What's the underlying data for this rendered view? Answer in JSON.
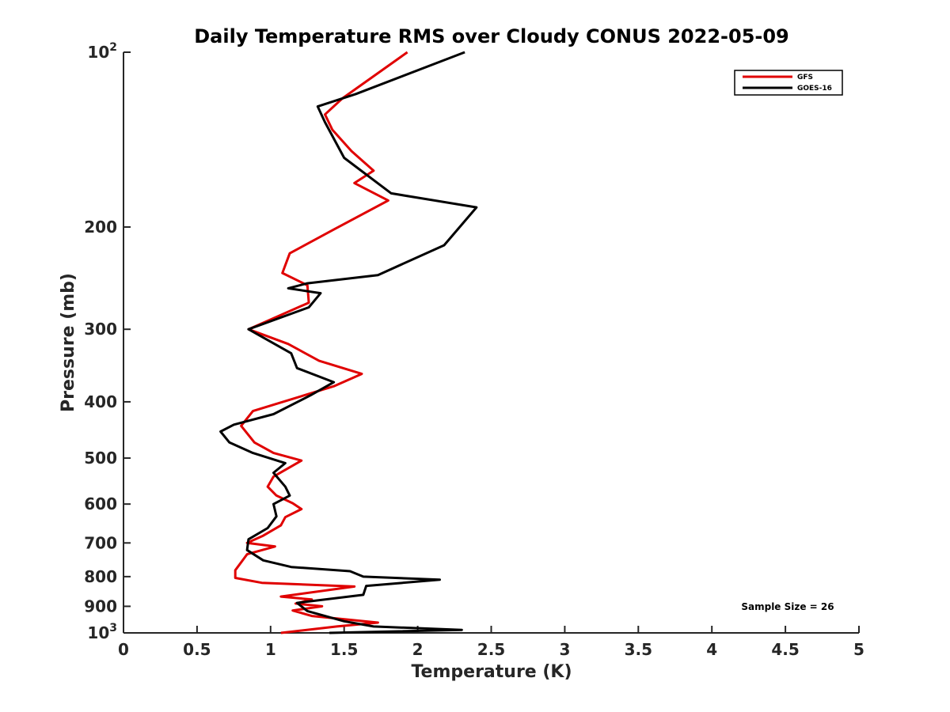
{
  "chart_data": {
    "type": "line",
    "title": "Daily Temperature RMS over Cloudy CONUS 2022-05-09",
    "xlabel": "Temperature (K)",
    "ylabel": "Pressure (mb)",
    "xlim": [
      0,
      5
    ],
    "ylim": [
      100,
      1000
    ],
    "y_scale": "log",
    "y_reversed": true,
    "x_ticks": [
      "0",
      "0.5",
      "1",
      "1.5",
      "2",
      "2.5",
      "3",
      "3.5",
      "4",
      "4.5",
      "5"
    ],
    "x_tick_values": [
      0,
      0.5,
      1,
      1.5,
      2,
      2.5,
      3,
      3.5,
      4,
      4.5,
      5
    ],
    "y_tick_values": [
      100,
      200,
      300,
      400,
      500,
      600,
      700,
      800,
      900,
      1000
    ],
    "y_tick_labels": [
      {
        "base": "10",
        "exp": "2"
      },
      {
        "base": "200",
        "exp": ""
      },
      {
        "base": "300",
        "exp": ""
      },
      {
        "base": "400",
        "exp": ""
      },
      {
        "base": "500",
        "exp": ""
      },
      {
        "base": "600",
        "exp": ""
      },
      {
        "base": "700",
        "exp": ""
      },
      {
        "base": "800",
        "exp": ""
      },
      {
        "base": "900",
        "exp": ""
      },
      {
        "base": "10",
        "exp": "3"
      }
    ],
    "grid": false,
    "legend_position": "top-right",
    "annotation": "Sample Size = 26",
    "series": [
      {
        "name": "GFS",
        "color": "#e00000",
        "x": [
          1.93,
          1.49,
          1.37,
          1.42,
          1.55,
          1.7,
          1.57,
          1.8,
          1.43,
          1.13,
          1.08,
          1.25,
          1.26,
          0.85,
          1.12,
          1.33,
          1.62,
          1.43,
          0.88,
          0.8,
          0.89,
          1.02,
          1.21,
          1.02,
          0.98,
          1.04,
          1.15,
          1.21,
          1.1,
          1.07,
          0.95,
          0.84,
          1.03,
          0.84,
          0.81,
          0.76,
          0.76,
          0.94,
          1.57,
          1.07,
          1.28,
          1.17,
          1.35,
          1.15,
          1.28,
          1.73,
          1.45,
          1.07
        ],
        "y": [
          100,
          120,
          128,
          136,
          148,
          160,
          168,
          180,
          202,
          222,
          240,
          252,
          270,
          300,
          318,
          340,
          358,
          376,
          415,
          440,
          470,
          490,
          505,
          538,
          560,
          580,
          598,
          612,
          632,
          653,
          680,
          700,
          710,
          732,
          750,
          780,
          804,
          820,
          832,
          866,
          876,
          890,
          900,
          915,
          935,
          960,
          975,
          1000
        ]
      },
      {
        "name": "GOES-16",
        "color": "#000000",
        "x": [
          2.32,
          1.58,
          1.32,
          1.37,
          1.5,
          1.82,
          2.4,
          2.18,
          1.73,
          1.25,
          1.12,
          1.34,
          1.26,
          0.85,
          1.14,
          1.18,
          1.43,
          1.27,
          1.02,
          0.75,
          0.66,
          0.72,
          0.88,
          1.1,
          1.02,
          1.1,
          1.13,
          1.02,
          1.04,
          0.98,
          0.85,
          0.84,
          0.95,
          1.14,
          1.54,
          1.63,
          2.15,
          1.65,
          1.63,
          1.18,
          1.25,
          1.5,
          1.7,
          2.3,
          1.4
        ],
        "y": [
          100,
          118,
          124,
          132,
          152,
          175,
          185,
          215,
          242,
          250,
          255,
          260,
          275,
          300,
          330,
          350,
          370,
          390,
          420,
          438,
          450,
          470,
          490,
          510,
          530,
          560,
          580,
          600,
          630,
          660,
          690,
          720,
          750,
          770,
          783,
          800,
          810,
          830,
          860,
          888,
          917,
          955,
          975,
          988,
          1000
        ]
      }
    ]
  }
}
